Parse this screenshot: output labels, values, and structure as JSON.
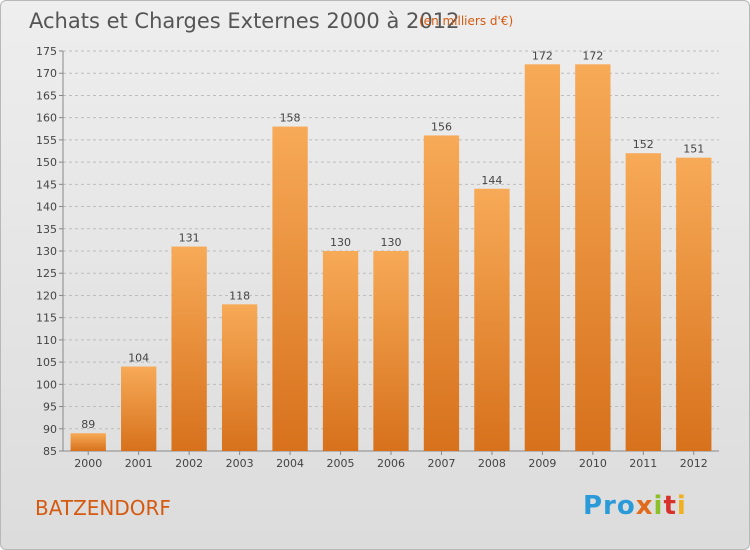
{
  "header": {
    "title": "Achats et Charges Externes 2000 à 2012",
    "subtitle": "(en milliers d'€)"
  },
  "footer": {
    "commune": "BATZENDORF",
    "logo_text": [
      "Pro",
      "x",
      "i",
      "t",
      "i"
    ]
  },
  "colors": {
    "bar_top": "#f7aa57",
    "bar_bottom": "#d7711c",
    "grid": "#bdbdbd",
    "accent": "#d55a10"
  },
  "chart_data": {
    "type": "bar",
    "title": "Achats et Charges Externes 2000 à 2012",
    "subtitle": "(en milliers d'€)",
    "categories": [
      "2000",
      "2001",
      "2002",
      "2003",
      "2004",
      "2005",
      "2006",
      "2007",
      "2008",
      "2009",
      "2010",
      "2011",
      "2012"
    ],
    "values": [
      89,
      104,
      131,
      118,
      158,
      130,
      130,
      156,
      144,
      172,
      172,
      152,
      151
    ],
    "ylim": [
      85,
      175
    ],
    "yticks": [
      85,
      90,
      95,
      100,
      105,
      110,
      115,
      120,
      125,
      130,
      135,
      140,
      145,
      150,
      155,
      160,
      165,
      170,
      175
    ],
    "grid": true,
    "data_labels": true
  }
}
